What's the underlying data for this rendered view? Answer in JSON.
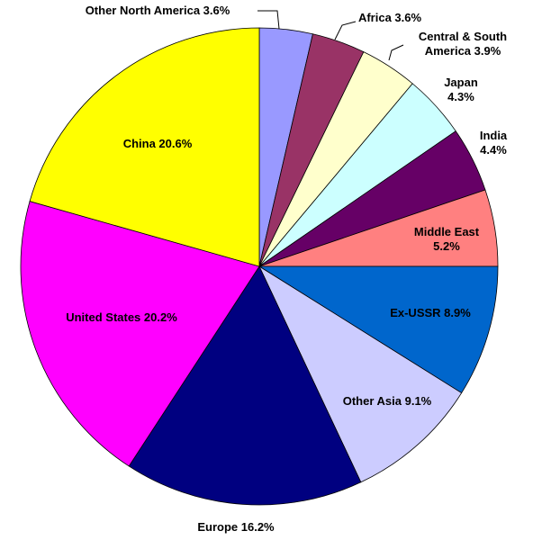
{
  "chart_data": {
    "type": "pie",
    "start_angle_deg": 0,
    "direction": "clockwise-from-top",
    "slices": [
      {
        "name": "Other North America",
        "value": 3.6,
        "label": "Other North America 3.6%",
        "color": "#9999FF"
      },
      {
        "name": "Africa",
        "value": 3.6,
        "label": "Africa 3.6%",
        "color": "#993366"
      },
      {
        "name": "Central & South America",
        "value": 3.9,
        "label": [
          "Central & South",
          "America 3.9%"
        ],
        "color": "#FFFFCC"
      },
      {
        "name": "Japan",
        "value": 4.3,
        "label": [
          "Japan",
          "4.3%"
        ],
        "color": "#CCFFFF"
      },
      {
        "name": "India",
        "value": 4.4,
        "label": [
          "India",
          "4.4%"
        ],
        "color": "#660066"
      },
      {
        "name": "Middle East",
        "value": 5.2,
        "label": [
          "Middle East",
          "5.2%"
        ],
        "color": "#FF8080"
      },
      {
        "name": "Ex-USSR",
        "value": 8.9,
        "label": "Ex-USSR 8.9%",
        "color": "#0066CC"
      },
      {
        "name": "Other Asia",
        "value": 9.1,
        "label": "Other Asia 9.1%",
        "color": "#CCCCFF"
      },
      {
        "name": "Europe",
        "value": 16.2,
        "label": "Europe 16.2%",
        "color": "#000080"
      },
      {
        "name": "United States",
        "value": 20.2,
        "label": "United States 20.2%",
        "color": "#FF00FF"
      },
      {
        "name": "China",
        "value": 20.6,
        "label": "China 20.6%",
        "color": "#FFFF00"
      }
    ]
  }
}
